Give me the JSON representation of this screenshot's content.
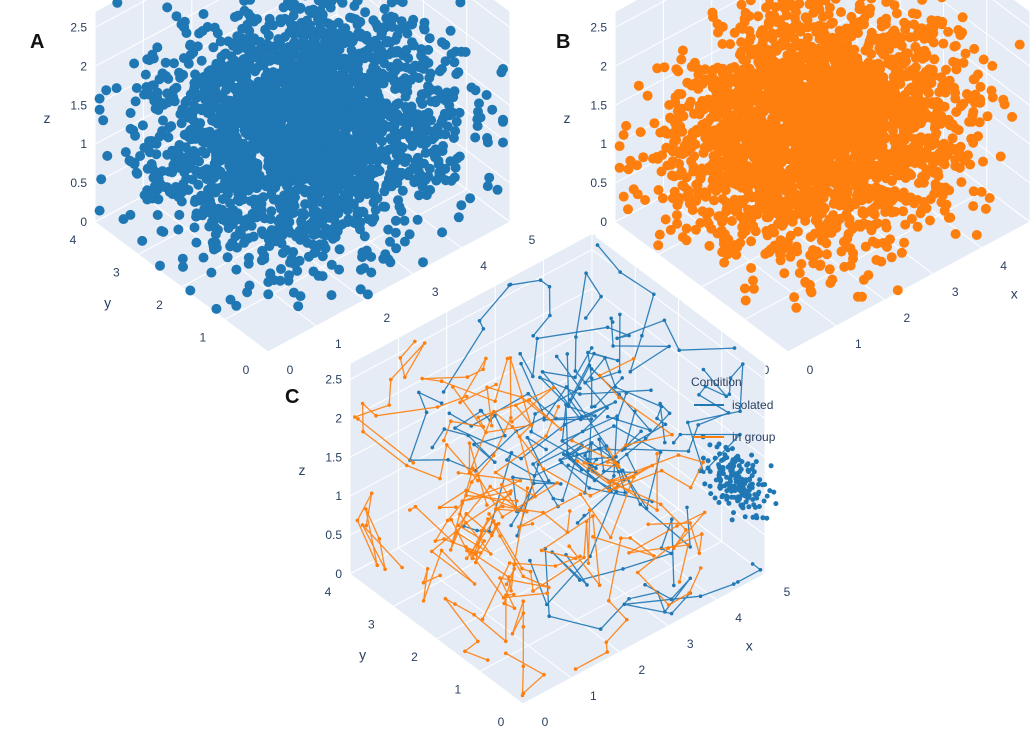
{
  "panels": [
    {
      "letter": "A",
      "color": "#1f77b4"
    },
    {
      "letter": "B",
      "color": "#ff7f0e"
    },
    {
      "letter": "C",
      "color": ""
    }
  ],
  "legend": {
    "title": "Condition",
    "items": [
      {
        "label": "isolated",
        "color": "#1f77b4"
      },
      {
        "label": "in group",
        "color": "#ff7f0e"
      }
    ]
  },
  "chart_data": [
    {
      "type": "scatter",
      "panel": "A",
      "dimensions": 3,
      "series": [
        {
          "color": "#1f77b4",
          "marker": "filled-circle"
        }
      ],
      "x": {
        "label": "x",
        "ticks": [
          "0",
          "1",
          "2",
          "3",
          "4",
          "5"
        ],
        "range": [
          0,
          5
        ]
      },
      "y": {
        "label": "y",
        "ticks": [
          "0",
          "1",
          "2",
          "3",
          "4"
        ],
        "range": [
          0,
          4
        ]
      },
      "z": {
        "label": "z",
        "ticks": [
          "0",
          "0.5",
          "1",
          "1.5",
          "2",
          "2.5"
        ],
        "range": [
          0,
          2.7
        ]
      },
      "note_points": "dense cloud filling roughly x 0–5, y 0–4, z 0–2.7"
    },
    {
      "type": "scatter",
      "panel": "B",
      "dimensions": 3,
      "series": [
        {
          "color": "#ff7f0e",
          "marker": "filled-circle"
        }
      ],
      "x": {
        "label": "x",
        "ticks": [
          "0",
          "1",
          "2",
          "3",
          "4",
          "5"
        ],
        "range": [
          0,
          5
        ]
      },
      "y": {
        "label": "y",
        "ticks": [
          "0",
          "1",
          "2",
          "3",
          "4"
        ],
        "range": [
          0,
          4
        ]
      },
      "z": {
        "label": "z",
        "ticks": [
          "0",
          "0.5",
          "1",
          "1.5",
          "2",
          "2.5"
        ],
        "range": [
          0,
          2.7
        ]
      }
    },
    {
      "type": "line",
      "panel": "C",
      "dimensions": 3,
      "legend_position": "top-right",
      "series": [
        {
          "name": "isolated",
          "color": "#1f77b4",
          "marker": "small-dots"
        },
        {
          "name": "in group",
          "color": "#ff7f0e",
          "marker": "small-dots"
        }
      ],
      "x": {
        "label": "x",
        "ticks": [
          "0",
          "1",
          "2",
          "3",
          "4",
          "5"
        ],
        "range": [
          0,
          5
        ]
      },
      "y": {
        "label": "y",
        "ticks": [
          "0",
          "1",
          "2",
          "3",
          "4"
        ],
        "range": [
          0,
          4
        ]
      },
      "z": {
        "label": "z",
        "ticks": [
          "0",
          "0.5",
          "1",
          "1.5",
          "2",
          "2.5"
        ],
        "range": [
          0,
          2.7
        ]
      }
    }
  ]
}
